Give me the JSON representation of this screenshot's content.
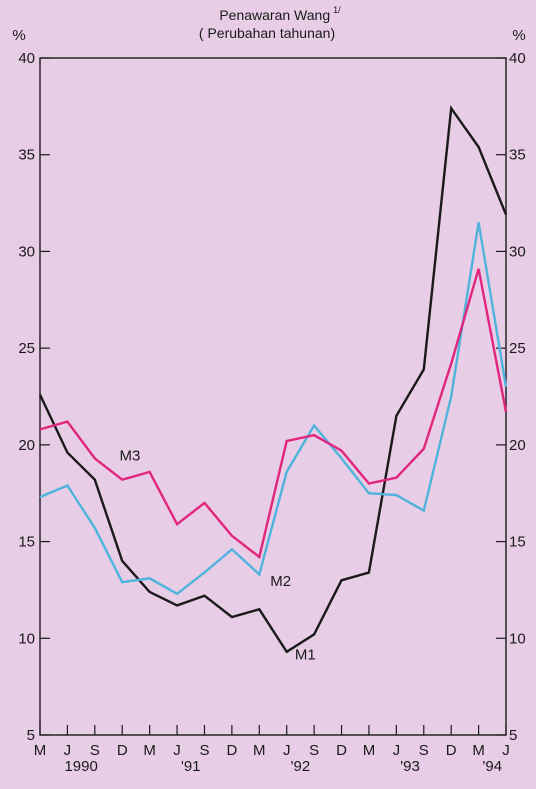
{
  "chart_data": {
    "type": "line",
    "title": "Penawaran Wang",
    "title_superscript": "1/",
    "subtitle": "( Perubahan tahunan)",
    "y_unit_left": "%",
    "y_unit_right": "%",
    "ylim": [
      5,
      40
    ],
    "yticks": [
      5,
      10,
      15,
      20,
      25,
      30,
      35,
      40
    ],
    "x": [
      "M",
      "J",
      "S",
      "D",
      "M",
      "J",
      "S",
      "D",
      "M",
      "J",
      "S",
      "D",
      "M",
      "J",
      "S",
      "D",
      "M",
      "J"
    ],
    "year_labels": [
      {
        "text": "1990",
        "index": 1.5
      },
      {
        "text": "'91",
        "index": 5.5
      },
      {
        "text": "'92",
        "index": 9.5
      },
      {
        "text": "'93",
        "index": 13.5
      },
      {
        "text": "'94",
        "index": 16.5
      }
    ],
    "grid": false,
    "series": [
      {
        "name": "M1",
        "color": "#1a1a1a",
        "values": [
          22.6,
          19.6,
          18.2,
          14.0,
          12.4,
          11.7,
          12.2,
          11.1,
          11.5,
          9.3,
          10.2,
          13.0,
          13.4,
          21.5,
          23.9,
          37.4,
          35.4,
          31.9
        ],
        "label_index": 9.3,
        "label_value": 8.9
      },
      {
        "name": "M2",
        "color": "#4fb3dc",
        "values": [
          17.3,
          17.9,
          15.7,
          12.9,
          13.1,
          12.3,
          13.4,
          14.6,
          13.3,
          18.6,
          21.0,
          19.3,
          17.5,
          17.4,
          16.6,
          22.5,
          31.5,
          23.0
        ],
        "label_index": 8.4,
        "label_value": 12.7
      },
      {
        "name": "M3",
        "color": "#e0267d",
        "values": [
          20.8,
          21.2,
          19.3,
          18.2,
          18.6,
          15.9,
          17.0,
          15.3,
          14.2,
          20.2,
          20.5,
          19.7,
          18.0,
          18.3,
          19.8,
          24.2,
          29.1,
          21.7
        ],
        "label_index": 2.9,
        "label_value": 19.2
      }
    ]
  }
}
